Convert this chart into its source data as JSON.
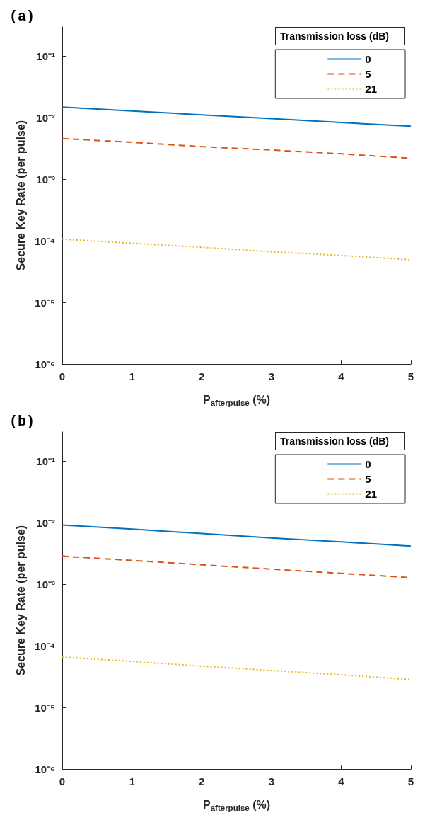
{
  "chart_data": [
    {
      "type": "line",
      "title": "(a)",
      "xlabel": "P$_{afterpulse}$ (%)",
      "ylabel": "Secure Key Rate (per pulse)",
      "legend_title": "Transmission loss (dB)",
      "legend": "top right",
      "log": "y",
      "grid": false,
      "marker": "none",
      "xlim": [
        0,
        5
      ],
      "xticks": [
        0,
        1,
        2,
        3,
        4,
        5
      ],
      "ylim": [
        1e-06,
        0.3
      ],
      "yticks": [
        {
          "value": 1e-06,
          "label": "10⁻⁶"
        },
        {
          "value": 1e-05,
          "label": "10⁻⁵"
        },
        {
          "value": 0.0001,
          "label": "10⁻⁴"
        },
        {
          "value": 0.001,
          "label": "10⁻³"
        },
        {
          "value": 0.01,
          "label": "10⁻²"
        },
        {
          "value": 0.1,
          "label": "10⁻¹"
        }
      ],
      "x": [
        0,
        1,
        2,
        3,
        4,
        5
      ],
      "series": [
        {
          "name": "0",
          "color": "#0072bd",
          "line_style": "solid",
          "values": [
            0.0149,
            0.0129,
            0.0112,
            0.0097,
            0.0084,
            0.0073
          ]
        },
        {
          "name": "5",
          "color": "#d95319",
          "line_style": "dashed",
          "values": [
            0.0046,
            0.004,
            0.0034,
            0.003,
            0.0026,
            0.0022
          ]
        },
        {
          "name": "21",
          "color": "#edb120",
          "line_style": "dotted",
          "values": [
            0.000107,
            9.2e-05,
            7.9e-05,
            6.7e-05,
            5.8e-05,
            4.95e-05
          ]
        }
      ]
    },
    {
      "type": "line",
      "title": "(b)",
      "xlabel": "P$_{afterpulse}$ (%)",
      "ylabel": "Secure Key Rate (per pulse)",
      "legend_title": "Transmission loss (dB)",
      "legend": "top right",
      "log": "y",
      "grid": false,
      "marker": "none",
      "xlim": [
        0,
        5
      ],
      "xticks": [
        0,
        1,
        2,
        3,
        4,
        5
      ],
      "ylim": [
        1e-06,
        0.3
      ],
      "yticks": [
        {
          "value": 1e-06,
          "label": "10⁻⁶"
        },
        {
          "value": 1e-05,
          "label": "10⁻⁵"
        },
        {
          "value": 0.0001,
          "label": "10⁻⁴"
        },
        {
          "value": 0.001,
          "label": "10⁻³"
        },
        {
          "value": 0.01,
          "label": "10⁻²"
        },
        {
          "value": 0.1,
          "label": "10⁻¹"
        }
      ],
      "x": [
        0,
        1,
        2,
        3,
        4,
        5
      ],
      "series": [
        {
          "name": "0",
          "color": "#0072bd",
          "line_style": "solid",
          "values": [
            0.0092,
            0.0079,
            0.0067,
            0.0057,
            0.0049,
            0.0042
          ]
        },
        {
          "name": "5",
          "color": "#d95319",
          "line_style": "dashed",
          "values": [
            0.00287,
            0.00245,
            0.00208,
            0.00177,
            0.00151,
            0.00129
          ]
        },
        {
          "name": "21",
          "color": "#edb120",
          "line_style": "dotted",
          "values": [
            6.6e-05,
            5.6e-05,
            4.7e-05,
            4e-05,
            3.4e-05,
            2.84e-05
          ]
        }
      ]
    }
  ]
}
